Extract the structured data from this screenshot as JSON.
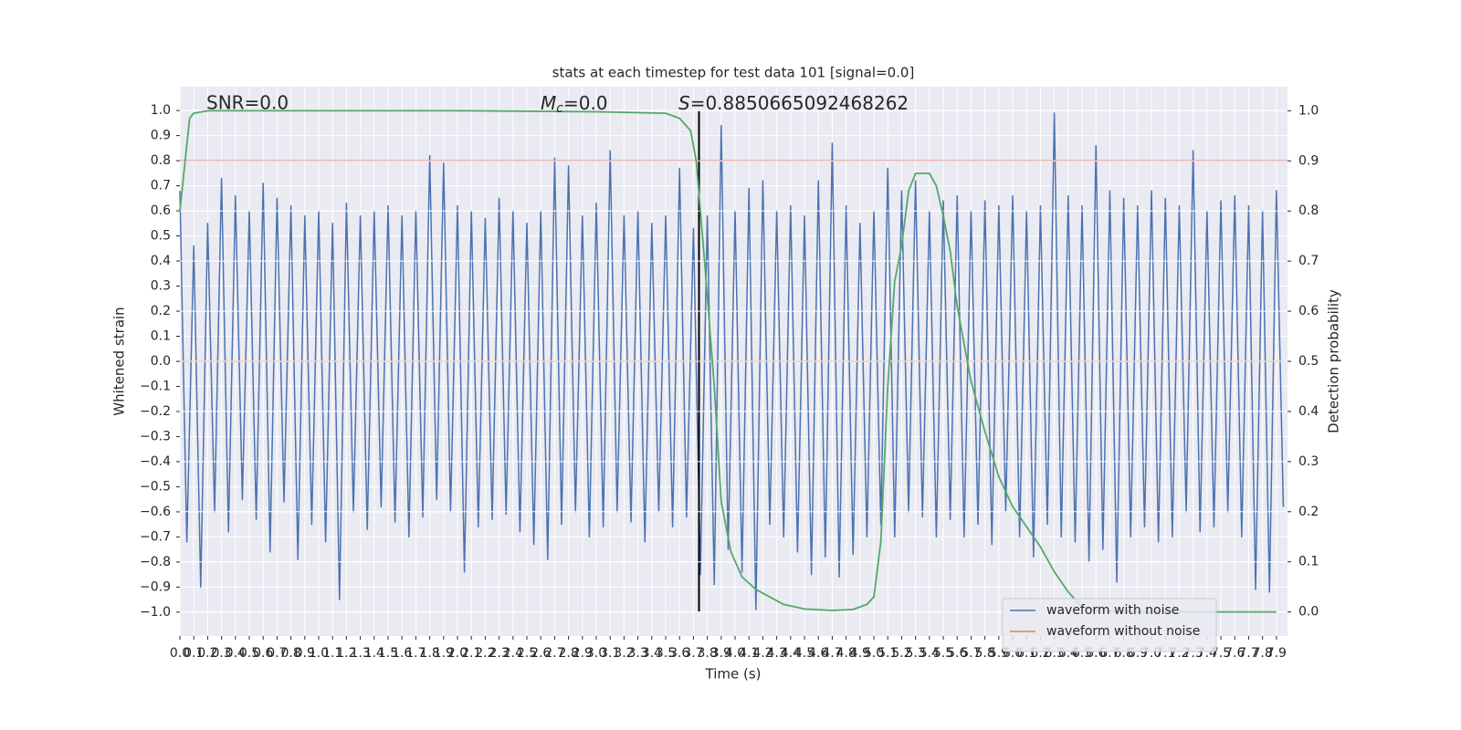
{
  "chart_data": {
    "type": "line",
    "title": "stats at each timestep for test data 101 [signal=0.0]",
    "xlabel": "Time (s)",
    "ylabel": "Whitened strain",
    "y2label": "Detection probability",
    "annotations": {
      "snr": "SNR=0.0",
      "mc": {
        "symbol": "M",
        "sub": "c",
        "text": "=0.0"
      },
      "s": {
        "symbol": "S",
        "text": "=0.8850665092468262"
      }
    },
    "xlim": [
      0,
      7.98
    ],
    "ylim": [
      -1.095,
      1.095
    ],
    "y2lim": [
      -0.048,
      1.048
    ],
    "grid": true,
    "legend": "lower right",
    "background": "#eaeaf2",
    "xticks": [
      {
        "value": 0,
        "label": "0.0"
      },
      0.1,
      0.2,
      0.3,
      0.4,
      0.5,
      0.6,
      0.7,
      0.8,
      0.9,
      {
        "value": 1,
        "label": "1.0"
      },
      1.1,
      1.2,
      1.3,
      1.4,
      1.5,
      1.6,
      1.7,
      1.8,
      1.9,
      {
        "value": 2,
        "label": "2.0"
      },
      2.1,
      2.2,
      2.3,
      2.4,
      2.5,
      2.6,
      2.7,
      2.8,
      2.9,
      {
        "value": 3,
        "label": "3.0"
      },
      3.1,
      3.2,
      3.3,
      3.4,
      3.5,
      3.6,
      3.7,
      3.8,
      3.9,
      {
        "value": 4,
        "label": "4.0"
      },
      4.1,
      4.2,
      4.3,
      4.4,
      4.5,
      4.6,
      4.7,
      4.8,
      4.9,
      {
        "value": 5,
        "label": "5.0"
      },
      5.1,
      5.2,
      5.3,
      5.4,
      5.5,
      5.6,
      5.7,
      5.8,
      5.9,
      {
        "value": 6,
        "label": "6.0"
      },
      6.1,
      6.2,
      6.3,
      6.4,
      6.5,
      6.6,
      6.7,
      6.8,
      6.9,
      {
        "value": 7,
        "label": "7.0"
      },
      7.1,
      7.2,
      7.3,
      7.4,
      7.5,
      7.6,
      7.7,
      7.8,
      7.9
    ],
    "yticks": [
      {
        "value": -1,
        "label": "−1.0"
      },
      {
        "value": -0.9,
        "label": "−0.9"
      },
      {
        "value": -0.8,
        "label": "−0.8"
      },
      {
        "value": -0.7,
        "label": "−0.7"
      },
      {
        "value": -0.6,
        "label": "−0.6"
      },
      {
        "value": -0.5,
        "label": "−0.5"
      },
      {
        "value": -0.4,
        "label": "−0.4"
      },
      {
        "value": -0.3,
        "label": "−0.3"
      },
      {
        "value": -0.2,
        "label": "−0.2"
      },
      {
        "value": -0.1,
        "label": "−0.1"
      },
      {
        "value": 0,
        "label": "0.0"
      },
      0.1,
      0.2,
      0.3,
      0.4,
      0.5,
      0.6,
      0.7,
      0.8,
      0.9,
      {
        "value": 1,
        "label": "1.0"
      }
    ],
    "y2ticks": [
      {
        "value": 0,
        "label": "0.0"
      },
      0.1,
      0.2,
      0.3,
      0.4,
      0.5,
      0.6,
      0.7,
      0.8,
      0.9,
      {
        "value": 1,
        "label": "1.0"
      }
    ],
    "threshold": {
      "y": 0.8,
      "color": "#c44e52"
    },
    "vline": {
      "x": 3.74,
      "ymin": -1,
      "ymax": 1,
      "color": "#000000"
    },
    "series": [
      {
        "name": "waveform with noise",
        "color": "#4c72b0",
        "x": [
          0,
          0.05,
          0.1,
          0.15,
          0.2,
          0.25,
          0.3,
          0.35,
          0.4,
          0.45,
          0.5,
          0.55,
          0.6,
          0.65,
          0.7,
          0.75,
          0.8,
          0.85,
          0.9,
          0.95,
          1,
          1.05,
          1.1,
          1.15,
          1.2,
          1.25,
          1.3,
          1.35,
          1.4,
          1.45,
          1.5,
          1.55,
          1.6,
          1.65,
          1.7,
          1.75,
          1.8,
          1.85,
          1.9,
          1.95,
          2,
          2.05,
          2.1,
          2.15,
          2.2,
          2.25,
          2.3,
          2.35,
          2.4,
          2.45,
          2.5,
          2.55,
          2.6,
          2.65,
          2.7,
          2.75,
          2.8,
          2.85,
          2.9,
          2.95,
          3,
          3.05,
          3.1,
          3.15,
          3.2,
          3.25,
          3.3,
          3.35,
          3.4,
          3.45,
          3.5,
          3.55,
          3.6,
          3.65,
          3.7,
          3.75,
          3.8,
          3.85,
          3.9,
          3.95,
          4,
          4.05,
          4.1,
          4.15,
          4.2,
          4.25,
          4.3,
          4.35,
          4.4,
          4.45,
          4.5,
          4.55,
          4.6,
          4.65,
          4.7,
          4.75,
          4.8,
          4.85,
          4.9,
          4.95,
          5,
          5.05,
          5.1,
          5.15,
          5.2,
          5.25,
          5.3,
          5.35,
          5.4,
          5.45,
          5.5,
          5.55,
          5.6,
          5.65,
          5.7,
          5.75,
          5.8,
          5.85,
          5.9,
          5.95,
          6,
          6.05,
          6.1,
          6.15,
          6.2,
          6.25,
          6.3,
          6.35,
          6.4,
          6.45,
          6.5,
          6.55,
          6.6,
          6.65,
          6.7,
          6.75,
          6.8,
          6.85,
          6.9,
          6.95,
          7,
          7.05,
          7.1,
          7.15,
          7.2,
          7.25,
          7.3,
          7.35,
          7.4,
          7.45,
          7.5,
          7.55,
          7.6,
          7.65,
          7.7,
          7.75,
          7.8,
          7.85,
          7.9,
          7.95
        ],
        "values": [
          0.68,
          -0.72,
          0.46,
          -0.9,
          0.55,
          -0.6,
          0.73,
          -0.68,
          0.66,
          -0.55,
          0.6,
          -0.63,
          0.71,
          -0.76,
          0.65,
          -0.56,
          0.62,
          -0.79,
          0.58,
          -0.65,
          0.6,
          -0.72,
          0.55,
          -0.95,
          0.63,
          -0.6,
          0.58,
          -0.67,
          0.6,
          -0.58,
          0.62,
          -0.64,
          0.58,
          -0.7,
          0.6,
          -0.62,
          0.82,
          -0.55,
          0.79,
          -0.6,
          0.62,
          -0.84,
          0.6,
          -0.66,
          0.57,
          -0.63,
          0.65,
          -0.61,
          0.6,
          -0.68,
          0.55,
          -0.73,
          0.6,
          -0.79,
          0.81,
          -0.65,
          0.78,
          -0.6,
          0.58,
          -0.7,
          0.63,
          -0.66,
          0.84,
          -0.6,
          0.58,
          -0.64,
          0.6,
          -0.72,
          0.55,
          -0.6,
          0.58,
          -0.66,
          0.77,
          -0.62,
          0.53,
          -0.85,
          0.58,
          -0.89,
          0.94,
          -0.75,
          0.6,
          -0.84,
          0.69,
          -0.99,
          0.72,
          -0.65,
          0.6,
          -0.7,
          0.62,
          -0.76,
          0.58,
          -0.85,
          0.72,
          -0.78,
          0.87,
          -0.86,
          0.62,
          -0.77,
          0.55,
          -0.7,
          0.6,
          -0.65,
          0.77,
          -0.7,
          0.68,
          -0.6,
          0.72,
          -0.62,
          0.6,
          -0.7,
          0.64,
          -0.63,
          0.66,
          -0.7,
          0.6,
          -0.65,
          0.64,
          -0.73,
          0.62,
          -0.6,
          0.66,
          -0.7,
          0.6,
          -0.78,
          0.62,
          -0.65,
          0.99,
          -0.7,
          0.66,
          -0.72,
          0.62,
          -0.8,
          0.86,
          -0.75,
          0.68,
          -0.88,
          0.65,
          -0.7,
          0.62,
          -0.66,
          0.68,
          -0.72,
          0.65,
          -0.7,
          0.62,
          -0.6,
          0.84,
          -0.68,
          0.6,
          -0.66,
          0.64,
          -0.6,
          0.66,
          -0.7,
          0.62,
          -0.91,
          0.6,
          -0.92,
          0.68,
          -0.58
        ]
      },
      {
        "name": "waveform without noise",
        "color": "#dd8452",
        "x": [
          0,
          7.95
        ],
        "values": [
          0,
          0
        ]
      },
      {
        "name": "detection probability",
        "color": "#55a868",
        "axis": "y2",
        "x": [
          0,
          0.07,
          0.1,
          0.2,
          1,
          2,
          3,
          3.5,
          3.6,
          3.68,
          3.72,
          3.78,
          3.85,
          3.9,
          3.97,
          4.05,
          4.15,
          4.25,
          4.35,
          4.5,
          4.7,
          4.85,
          4.95,
          5,
          5.05,
          5.1,
          5.15,
          5.2,
          5.25,
          5.3,
          5.4,
          5.45,
          5.5,
          5.55,
          5.6,
          5.7,
          5.8,
          5.9,
          6,
          6.1,
          6.2,
          6.3,
          6.4,
          6.5,
          6.6,
          7,
          7.9
        ],
        "values": [
          0.8,
          0.985,
          0.995,
          1,
          1,
          1,
          0.998,
          0.995,
          0.985,
          0.96,
          0.9,
          0.7,
          0.45,
          0.22,
          0.12,
          0.07,
          0.045,
          0.03,
          0.015,
          0.006,
          0.003,
          0.005,
          0.015,
          0.03,
          0.14,
          0.45,
          0.66,
          0.73,
          0.84,
          0.875,
          0.875,
          0.85,
          0.79,
          0.72,
          0.61,
          0.46,
          0.36,
          0.27,
          0.21,
          0.17,
          0.13,
          0.08,
          0.04,
          0.01,
          0.002,
          0,
          0
        ]
      }
    ]
  }
}
